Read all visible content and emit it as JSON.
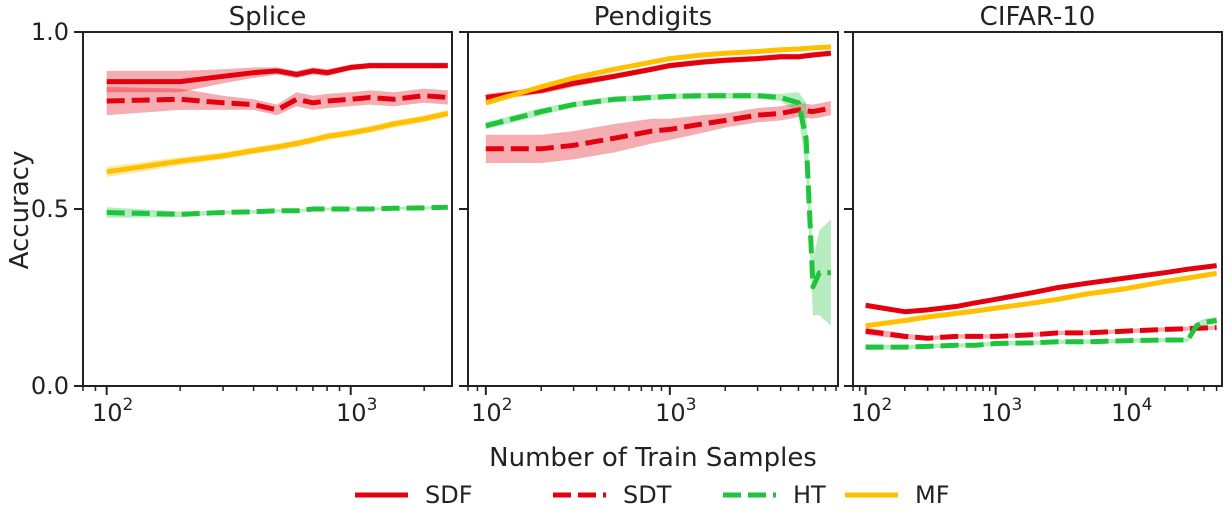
{
  "chart_data": {
    "type": "line",
    "ylabel": "Accuracy",
    "xlabel": "Number of Train Samples",
    "ylim": [
      0,
      1
    ],
    "yticks": [
      "0.0",
      "0.5",
      "1.0"
    ],
    "xscale": "log",
    "legend_position": "bottom-center",
    "legend": [
      {
        "name": "SDF",
        "color": "#e3000f",
        "dash": "solid"
      },
      {
        "name": "SDT",
        "color": "#e3000f",
        "dash": "dashed"
      },
      {
        "name": "HT",
        "color": "#1fc43d",
        "dash": "dashed"
      },
      {
        "name": "MF",
        "color": "#ffc000",
        "dash": "solid"
      }
    ],
    "panels": [
      {
        "title": "Splice",
        "xlim": [
          80,
          2600
        ],
        "xticks": [
          {
            "value": 100,
            "base": "10",
            "exp": "2"
          },
          {
            "value": 1000,
            "base": "10",
            "exp": "3"
          }
        ],
        "series": [
          {
            "name": "SDF",
            "x": [
              100,
              200,
              300,
              400,
              500,
              600,
              700,
              800,
              1000,
              1200,
              1500,
              2000,
              2500
            ],
            "y": [
              0.86,
              0.86,
              0.875,
              0.885,
              0.89,
              0.88,
              0.89,
              0.885,
              0.9,
              0.905,
              0.905,
              0.905,
              0.905
            ],
            "band": [
              0.03,
              0.03,
              0.02,
              0.015,
              0.01,
              0.01,
              0.01,
              0.01,
              0.008,
              0.008,
              0.008,
              0.008,
              0.008
            ]
          },
          {
            "name": "SDT",
            "x": [
              100,
              200,
              300,
              400,
              500,
              600,
              700,
              800,
              1000,
              1200,
              1500,
              2000,
              2500
            ],
            "y": [
              0.805,
              0.81,
              0.8,
              0.795,
              0.78,
              0.81,
              0.8,
              0.805,
              0.81,
              0.815,
              0.81,
              0.82,
              0.815
            ],
            "band": [
              0.04,
              0.03,
              0.02,
              0.015,
              0.015,
              0.02,
              0.02,
              0.02,
              0.02,
              0.02,
              0.02,
              0.02,
              0.02
            ]
          },
          {
            "name": "MF",
            "x": [
              100,
              200,
              300,
              400,
              500,
              600,
              700,
              800,
              1000,
              1200,
              1500,
              2000,
              2500
            ],
            "y": [
              0.605,
              0.635,
              0.65,
              0.665,
              0.675,
              0.685,
              0.695,
              0.705,
              0.715,
              0.725,
              0.74,
              0.755,
              0.77
            ],
            "band": [
              0.015,
              0.012,
              0.01,
              0.01,
              0.01,
              0.01,
              0.01,
              0.01,
              0.01,
              0.01,
              0.01,
              0.01,
              0.01
            ]
          },
          {
            "name": "HT",
            "x": [
              100,
              200,
              300,
              400,
              500,
              600,
              700,
              800,
              1000,
              1200,
              1500,
              2000,
              2500
            ],
            "y": [
              0.49,
              0.485,
              0.49,
              0.492,
              0.495,
              0.495,
              0.5,
              0.5,
              0.5,
              0.5,
              0.502,
              0.503,
              0.505
            ],
            "band": [
              0.015,
              0.008,
              0.005,
              0.005,
              0.004,
              0.004,
              0.004,
              0.004,
              0.004,
              0.004,
              0.004,
              0.004,
              0.004
            ]
          }
        ]
      },
      {
        "title": "Pendigits",
        "xlim": [
          80,
          8200
        ],
        "xticks": [
          {
            "value": 100,
            "base": "10",
            "exp": "2"
          },
          {
            "value": 1000,
            "base": "10",
            "exp": "3"
          }
        ],
        "series": [
          {
            "name": "SDF",
            "x": [
              100,
              200,
              300,
              500,
              800,
              1000,
              1500,
              2000,
              3000,
              4000,
              5000,
              6000,
              7500
            ],
            "y": [
              0.815,
              0.835,
              0.855,
              0.875,
              0.895,
              0.905,
              0.915,
              0.92,
              0.925,
              0.93,
              0.93,
              0.935,
              0.94
            ],
            "band": [
              0.01,
              0.01,
              0.01,
              0.008,
              0.008,
              0.008,
              0.008,
              0.008,
              0.008,
              0.008,
              0.008,
              0.008,
              0.008
            ]
          },
          {
            "name": "SDT",
            "x": [
              100,
              200,
              300,
              500,
              800,
              1000,
              1500,
              2000,
              3000,
              4000,
              5000,
              6000,
              7500
            ],
            "y": [
              0.67,
              0.67,
              0.68,
              0.7,
              0.72,
              0.725,
              0.74,
              0.75,
              0.765,
              0.77,
              0.78,
              0.775,
              0.785
            ],
            "band": [
              0.04,
              0.04,
              0.04,
              0.04,
              0.035,
              0.03,
              0.025,
              0.02,
              0.02,
              0.02,
              0.02,
              0.02,
              0.02
            ]
          },
          {
            "name": "MF",
            "x": [
              100,
              200,
              300,
              500,
              800,
              1000,
              1500,
              2000,
              3000,
              4000,
              5000,
              6000,
              7500
            ],
            "y": [
              0.8,
              0.845,
              0.87,
              0.895,
              0.915,
              0.925,
              0.935,
              0.94,
              0.945,
              0.95,
              0.952,
              0.955,
              0.958
            ],
            "band": [
              0.008,
              0.008,
              0.006,
              0.005,
              0.005,
              0.005,
              0.005,
              0.005,
              0.005,
              0.005,
              0.005,
              0.005,
              0.005
            ]
          },
          {
            "name": "HT",
            "x": [
              100,
              200,
              300,
              500,
              800,
              1000,
              1500,
              2000,
              3000,
              4000,
              5000,
              5500,
              6000,
              6500,
              7500
            ],
            "y": [
              0.735,
              0.775,
              0.795,
              0.81,
              0.815,
              0.818,
              0.82,
              0.82,
              0.82,
              0.815,
              0.8,
              0.7,
              0.28,
              0.32,
              0.32
            ],
            "band": [
              0.01,
              0.01,
              0.008,
              0.008,
              0.008,
              0.008,
              0.008,
              0.008,
              0.008,
              0.01,
              0.03,
              0.1,
              0.08,
              0.12,
              0.15
            ]
          }
        ]
      },
      {
        "title": "CIFAR-10",
        "xlim": [
          80,
          55000
        ],
        "xticks": [
          {
            "value": 100,
            "base": "10",
            "exp": "2"
          },
          {
            "value": 1000,
            "base": "10",
            "exp": "3"
          },
          {
            "value": 10000,
            "base": "10",
            "exp": "4"
          }
        ],
        "series": [
          {
            "name": "SDF",
            "x": [
              100,
              200,
              300,
              500,
              700,
              1000,
              2000,
              3000,
              5000,
              10000,
              20000,
              30000,
              50000
            ],
            "y": [
              0.228,
              0.21,
              0.215,
              0.225,
              0.235,
              0.245,
              0.265,
              0.278,
              0.29,
              0.305,
              0.32,
              0.33,
              0.34
            ],
            "band": [
              0.008,
              0.006,
              0.006,
              0.006,
              0.006,
              0.006,
              0.006,
              0.006,
              0.006,
              0.006,
              0.006,
              0.006,
              0.006
            ]
          },
          {
            "name": "MF",
            "x": [
              100,
              200,
              300,
              500,
              700,
              1000,
              2000,
              3000,
              5000,
              10000,
              20000,
              30000,
              50000
            ],
            "y": [
              0.17,
              0.185,
              0.195,
              0.205,
              0.212,
              0.22,
              0.235,
              0.245,
              0.26,
              0.275,
              0.295,
              0.305,
              0.318
            ],
            "band": [
              0.004,
              0.004,
              0.004,
              0.004,
              0.004,
              0.004,
              0.004,
              0.004,
              0.004,
              0.004,
              0.004,
              0.004,
              0.004
            ]
          },
          {
            "name": "SDT",
            "x": [
              100,
              200,
              300,
              500,
              700,
              1000,
              2000,
              3000,
              5000,
              10000,
              20000,
              30000,
              50000
            ],
            "y": [
              0.155,
              0.14,
              0.135,
              0.14,
              0.14,
              0.14,
              0.145,
              0.15,
              0.15,
              0.155,
              0.16,
              0.162,
              0.165
            ],
            "band": [
              0.01,
              0.008,
              0.006,
              0.006,
              0.006,
              0.006,
              0.006,
              0.006,
              0.006,
              0.006,
              0.006,
              0.006,
              0.006
            ]
          },
          {
            "name": "HT",
            "x": [
              100,
              200,
              300,
              500,
              700,
              1000,
              2000,
              3000,
              5000,
              10000,
              20000,
              30000,
              35000,
              40000,
              50000
            ],
            "y": [
              0.11,
              0.11,
              0.112,
              0.115,
              0.115,
              0.12,
              0.122,
              0.125,
              0.125,
              0.128,
              0.13,
              0.13,
              0.17,
              0.18,
              0.185
            ],
            "band": [
              0.008,
              0.006,
              0.006,
              0.006,
              0.006,
              0.006,
              0.006,
              0.006,
              0.006,
              0.006,
              0.006,
              0.006,
              0.01,
              0.01,
              0.01
            ]
          }
        ]
      }
    ]
  }
}
